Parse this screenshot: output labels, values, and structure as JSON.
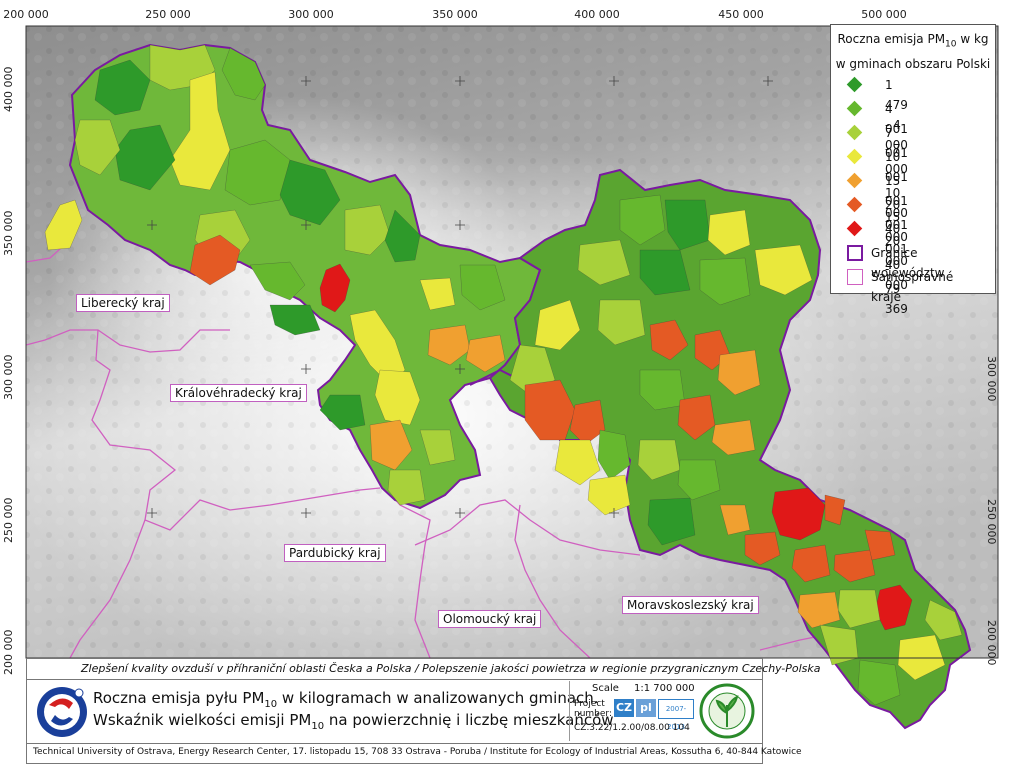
{
  "axes": {
    "x_ticks": [
      "200 000",
      "250 000",
      "300 000",
      "350 000",
      "400 000",
      "450 000",
      "500 000"
    ],
    "y_ticks": [
      "400 000",
      "350 000",
      "300 000",
      "250 000",
      "200 000"
    ]
  },
  "regions": {
    "liberecky": "Liberecký kraj",
    "kralovehradecky": "Královéhradecký kraj",
    "pardubicky": "Pardubický kraj",
    "olomoucky": "Olomoucký kraj",
    "moravskoslezsky": "Moravskoslezský kraj"
  },
  "legend": {
    "title_line1_pre": "Roczna emisja PM",
    "title_line1_sub": "10",
    "title_line1_post": " w kg",
    "title_line2": "w gminach obszaru Polski",
    "classes": [
      {
        "label": "1 479 - 4 000",
        "color": "#2e9a2a"
      },
      {
        "label": "4 001 - 7 000",
        "color": "#66b82e"
      },
      {
        "label": "7 001 - 10 000",
        "color": "#a8d13a"
      },
      {
        "label": "10 001 - 15 000",
        "color": "#e9e83c"
      },
      {
        "label": "15 001 - 20 000",
        "color": "#f0a030"
      },
      {
        "label": "20 001 - 40 000",
        "color": "#e45a24"
      },
      {
        "label": "40 001 - 79 369",
        "color": "#e01818"
      }
    ],
    "boundary_voivodeship": {
      "label": "Granice województw",
      "color": "#7a1aa0"
    },
    "boundary_kraje": {
      "label": "Samosprávné kraje",
      "color": "#d060c0"
    }
  },
  "footer": {
    "project_title": "Zlepšení kvality ovzduší v příhraniční oblasti Česka a Polska / Polepszenie jakości powietrza w  regionie przygranicznym Czechy-Polska",
    "main_line1_pre": "Roczna emisja pyłu PM",
    "main_line1_sub": "10",
    "main_line1_post": " w kilogramach w analizowanych gminach.",
    "main_line2_pre": "Wskaźnik wielkości emisji PM",
    "main_line2_sub": "10",
    "main_line2_post": " na powierzchnię i liczbę mieszkańców",
    "scale_label": "Scale",
    "scale_value": "1:1 700 000",
    "project_label_1": "Project",
    "project_label_2": "number:",
    "project_number": "CZ.3.22/1.2.00/08.00 104",
    "cz_badge": "CZ",
    "pl_badge": "pl",
    "years": "2007-2013",
    "credits": "Technical University of Ostrava, Energy Research Center, 17. listopadu 15, 708 33 Ostrava - Poruba / Institute for Ecology of Industrial Areas, Kossutha 6, 40-844 Katowice"
  },
  "colors": {
    "map_background": "#9a9a9a",
    "low_terrain": "#f2f2f2",
    "accent_purple": "#7a1aa0",
    "pink_boundary": "#d060c0"
  }
}
